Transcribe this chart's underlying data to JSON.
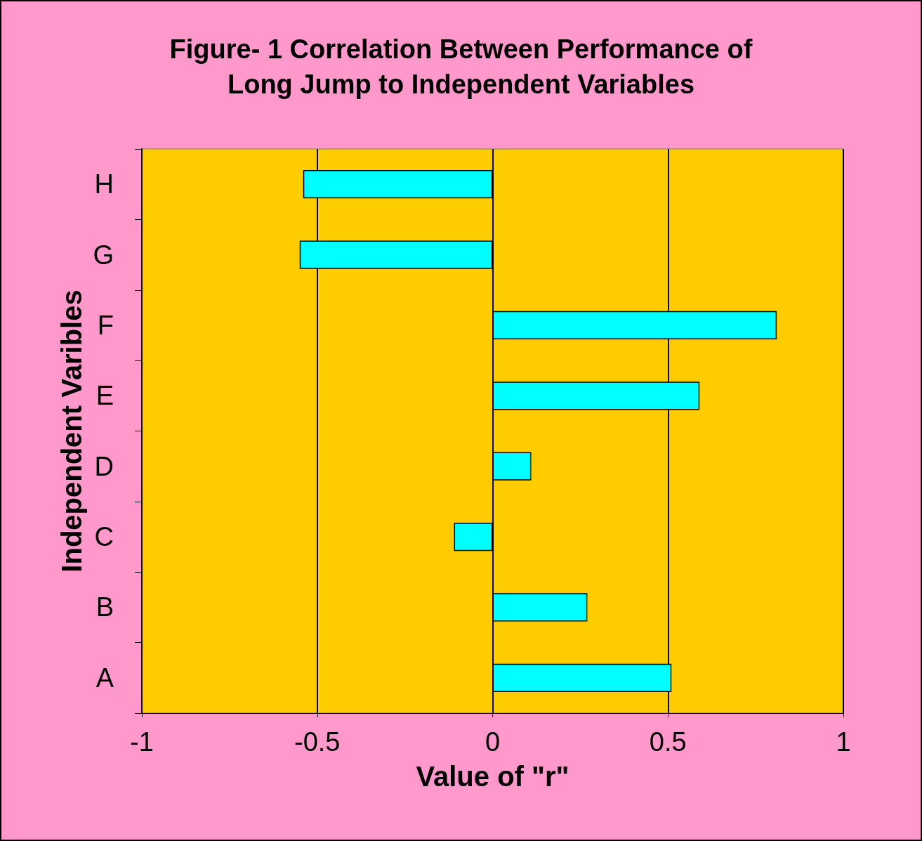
{
  "chart_data": {
    "type": "bar",
    "orientation": "horizontal",
    "title": "Figure- 1 Correlation Between Performance of\nLong Jump to Independent Variables",
    "xlabel": "Value of \"r\"",
    "ylabel": "Independent Varibles",
    "categories": [
      "H",
      "G",
      "F",
      "E",
      "D",
      "C",
      "B",
      "A"
    ],
    "values": [
      -0.54,
      -0.55,
      0.81,
      0.59,
      0.11,
      -0.11,
      0.27,
      0.51
    ],
    "color": "#00ffff",
    "xlim": [
      -1,
      1
    ],
    "xticks": [
      -1,
      -0.5,
      0,
      0.5,
      1
    ],
    "grid": "x"
  }
}
